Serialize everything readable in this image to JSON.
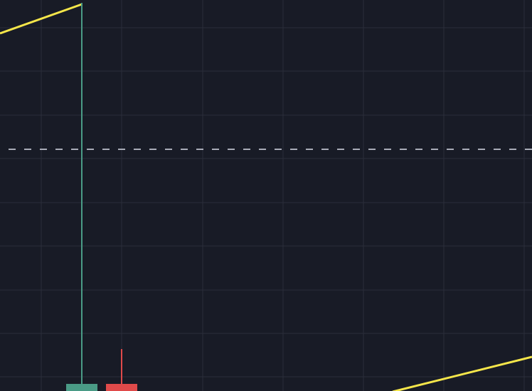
{
  "chart_data": {
    "type": "candlestick",
    "title": "",
    "xlabel": "",
    "ylabel": "",
    "grid": true,
    "candles": [
      {
        "direction": "up"
      },
      {
        "direction": "down"
      }
    ],
    "overlays": [
      {
        "type": "line",
        "color": "#f5e64a"
      },
      {
        "type": "horizontal-dashed-line",
        "color": "#a9acb8"
      }
    ],
    "colors": {
      "background": "#181b26",
      "grid": "#2a2e3a",
      "up": "#4a9b86",
      "down": "#e04a4a"
    }
  }
}
